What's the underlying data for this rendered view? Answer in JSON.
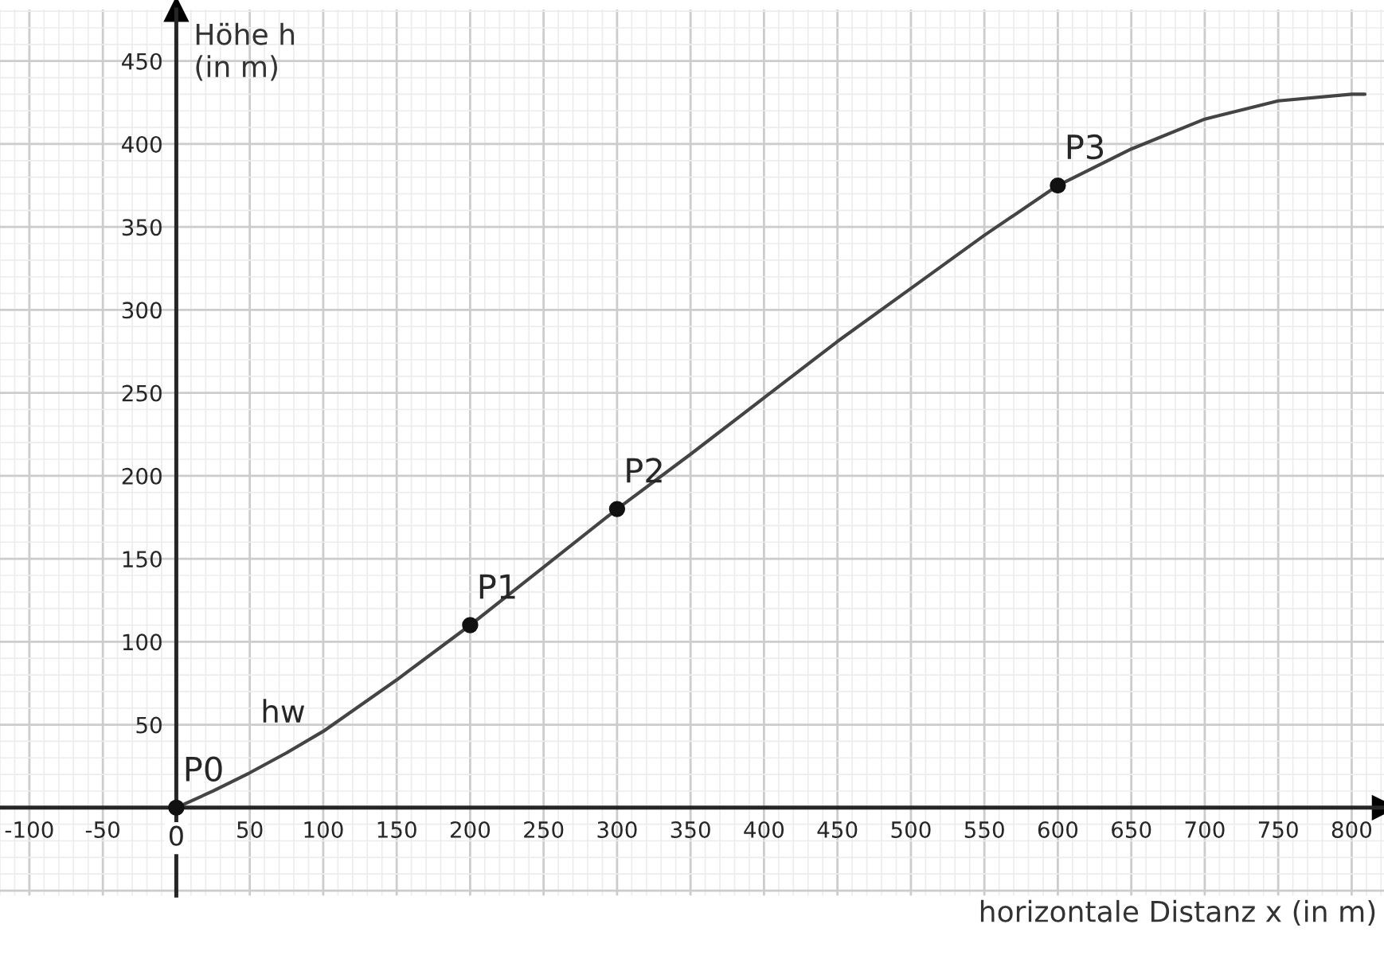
{
  "chart_data": {
    "type": "line",
    "xlabel": "horizontale Distanz x (in m)",
    "ylabel": "Höhe h\n(in m)",
    "xlim": [
      -120,
      822
    ],
    "ylim": [
      -53,
      481
    ],
    "xticks": [
      -100,
      -50,
      0,
      50,
      100,
      150,
      200,
      250,
      300,
      350,
      400,
      450,
      500,
      550,
      600,
      650,
      700,
      750,
      800
    ],
    "yticks": [
      50,
      100,
      150,
      200,
      250,
      300,
      350,
      400,
      450
    ],
    "grid": true,
    "legend": false,
    "series": [
      {
        "name": "hw",
        "color": "#444444",
        "marker": "none",
        "x": [
          0,
          25,
          50,
          75,
          100,
          150,
          200,
          250,
          300,
          350,
          400,
          450,
          500,
          550,
          600,
          650,
          700,
          750,
          800,
          809
        ],
        "values": [
          0,
          10,
          21,
          33,
          46,
          77,
          110,
          145,
          180,
          213,
          247,
          281,
          313,
          345,
          375,
          397,
          415,
          426,
          430,
          430
        ]
      },
      {
        "type": "scatter",
        "color": "#111111",
        "marker": "circle",
        "x": [
          0,
          200,
          300,
          600
        ],
        "values": [
          0,
          110,
          180,
          375
        ]
      }
    ],
    "annotations": [
      {
        "text": "P0",
        "x": 0,
        "y": 0
      },
      {
        "text": "P1",
        "x": 200,
        "y": 110
      },
      {
        "text": "P2",
        "x": 300,
        "y": 180
      },
      {
        "text": "P3",
        "x": 600,
        "y": 375
      }
    ]
  }
}
